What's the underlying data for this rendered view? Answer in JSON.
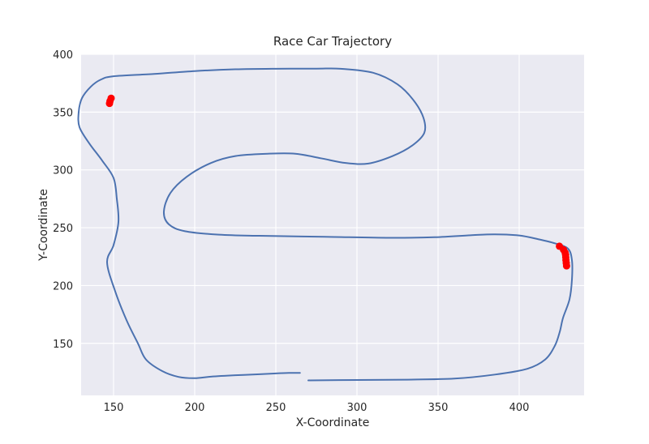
{
  "chart_data": {
    "type": "line",
    "title": "Race Car Trajectory",
    "xlabel": "X-Coordinate",
    "ylabel": "Y-Coordinate",
    "xlim": [
      130,
      440
    ],
    "ylim": [
      105,
      400
    ],
    "xticks": [
      150,
      200,
      250,
      300,
      350,
      400
    ],
    "yticks": [
      150,
      200,
      250,
      300,
      350,
      400
    ],
    "grid": true,
    "background": "#eaeaf2",
    "grid_color": "#ffffff",
    "line_color": "#4c72b0",
    "marker_color": "#ff0000",
    "series": [
      {
        "type": "line",
        "points": [
          [
            264.9,
            124.4
          ],
          [
            258,
            124.4
          ],
          [
            250,
            124
          ],
          [
            240,
            123.3
          ],
          [
            225,
            122.4
          ],
          [
            210,
            121.2
          ],
          [
            200,
            119.9
          ],
          [
            190,
            121
          ],
          [
            180,
            126
          ],
          [
            170,
            136
          ],
          [
            165,
            150
          ],
          [
            158,
            170
          ],
          [
            151,
            195
          ],
          [
            146,
            220
          ],
          [
            150,
            235
          ],
          [
            153,
            255
          ],
          [
            152,
            275
          ],
          [
            150,
            293
          ],
          [
            143,
            308
          ],
          [
            135,
            323
          ],
          [
            129,
            337
          ],
          [
            128.5,
            350
          ],
          [
            130.5,
            362
          ],
          [
            136,
            372
          ],
          [
            142,
            378
          ],
          [
            150,
            381
          ],
          [
            175,
            383
          ],
          [
            200,
            385.5
          ],
          [
            225,
            387
          ],
          [
            250,
            387.5
          ],
          [
            275,
            387.6
          ],
          [
            290,
            387.5
          ],
          [
            310,
            384
          ],
          [
            325,
            374
          ],
          [
            335,
            360
          ],
          [
            341,
            345
          ],
          [
            341.5,
            332
          ],
          [
            334,
            321
          ],
          [
            322,
            312
          ],
          [
            307,
            305.5
          ],
          [
            293,
            306
          ],
          [
            278,
            310
          ],
          [
            262,
            314
          ],
          [
            245,
            314
          ],
          [
            225,
            312
          ],
          [
            210,
            306
          ],
          [
            195,
            294
          ],
          [
            185,
            280
          ],
          [
            181,
            264
          ],
          [
            184,
            253
          ],
          [
            194,
            247
          ],
          [
            215,
            244
          ],
          [
            240,
            243
          ],
          [
            280,
            242.2
          ],
          [
            320,
            241.3
          ],
          [
            348,
            241.8
          ],
          [
            370,
            243.5
          ],
          [
            385,
            244.3
          ],
          [
            400,
            243.3
          ],
          [
            412,
            240
          ],
          [
            422,
            236.5
          ],
          [
            430,
            232
          ],
          [
            432.5,
            222
          ],
          [
            432.5,
            205
          ],
          [
            431,
            188
          ],
          [
            427,
            172
          ],
          [
            425,
            160
          ],
          [
            422,
            148
          ],
          [
            416,
            136
          ],
          [
            405,
            128
          ],
          [
            385,
            123
          ],
          [
            360,
            119.5
          ],
          [
            330,
            118.6
          ],
          [
            300,
            118.3
          ],
          [
            270,
            118.0
          ]
        ]
      }
    ],
    "markers": [
      [
        148.5,
        362.0
      ],
      [
        147.8,
        359.5
      ],
      [
        147.5,
        357.5
      ],
      [
        424.8,
        234.0
      ],
      [
        427.3,
        231.0
      ],
      [
        428.3,
        228.5
      ],
      [
        428.6,
        226.5
      ],
      [
        428.7,
        224.5
      ],
      [
        428.8,
        222.0
      ],
      [
        429.0,
        219.5
      ],
      [
        429.2,
        217.0
      ]
    ]
  }
}
